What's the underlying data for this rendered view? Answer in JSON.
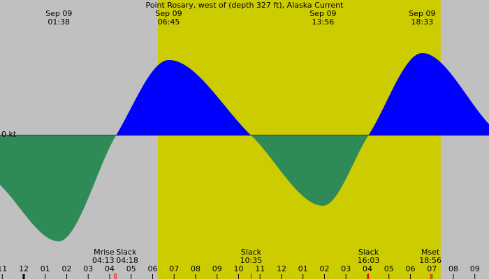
{
  "chart_data": {
    "type": "current",
    "title": "Point Rosary, west of (depth 327 ft), Alaska Current",
    "x": [
      -1.106,
      1.633,
      4.3,
      6.75,
      10.583,
      13.933,
      16.05,
      18.55,
      21.66
    ],
    "values": [
      -0.71,
      -1.52,
      0,
      1.08,
      0,
      -1.01,
      0,
      1.18,
      0.16
    ],
    "flood_color": "#0000ff",
    "ebb_color": "#2e8b57",
    "background": "#c0c0c0",
    "daylight": [
      6.24,
      19.41
    ],
    "daylight_color": "#cccc00",
    "xlim": [
      -1.106,
      21.66
    ],
    "ylim": [
      -2.06,
      1.94
    ],
    "yticks": [
      {
        "value": 0,
        "label": "0 kt"
      }
    ],
    "xticks": [
      {
        "value": -1,
        "label": "11"
      },
      {
        "value": 0,
        "label": "12"
      },
      {
        "value": 1,
        "label": "01"
      },
      {
        "value": 2,
        "label": "02"
      },
      {
        "value": 3,
        "label": "03"
      },
      {
        "value": 4,
        "label": "04"
      },
      {
        "value": 5,
        "label": "05"
      },
      {
        "value": 6,
        "label": "06"
      },
      {
        "value": 7,
        "label": "07"
      },
      {
        "value": 8,
        "label": "08"
      },
      {
        "value": 9,
        "label": "09"
      },
      {
        "value": 10,
        "label": "10"
      },
      {
        "value": 11,
        "label": "11"
      },
      {
        "value": 12,
        "label": "12"
      },
      {
        "value": 13,
        "label": "01"
      },
      {
        "value": 14,
        "label": "02"
      },
      {
        "value": 15,
        "label": "03"
      },
      {
        "value": 16,
        "label": "04"
      },
      {
        "value": 17,
        "label": "05"
      },
      {
        "value": 18,
        "label": "06"
      },
      {
        "value": 19,
        "label": "07"
      },
      {
        "value": 20,
        "label": "08"
      },
      {
        "value": 21,
        "label": "09"
      }
    ],
    "peak_labels": [
      {
        "date": "Sep 09",
        "time": "01:38",
        "x": 1.633
      },
      {
        "date": "Sep 09",
        "time": "06:45",
        "x": 6.75
      },
      {
        "date": "Sep 09",
        "time": "13:56",
        "x": 13.933
      },
      {
        "date": "Sep 09",
        "time": "18:33",
        "x": 18.55
      }
    ],
    "events": [
      {
        "label": "Mrise",
        "time": "04:13",
        "x": 4.217
      },
      {
        "label": "Slack",
        "time": "04:18",
        "x": 4.3
      },
      {
        "label": "Slack",
        "time": "10:35",
        "x": 10.583
      },
      {
        "label": "Slack",
        "time": "16:03",
        "x": 16.05
      },
      {
        "label": "Mset",
        "time": "18:56",
        "x": 18.933
      }
    ]
  }
}
